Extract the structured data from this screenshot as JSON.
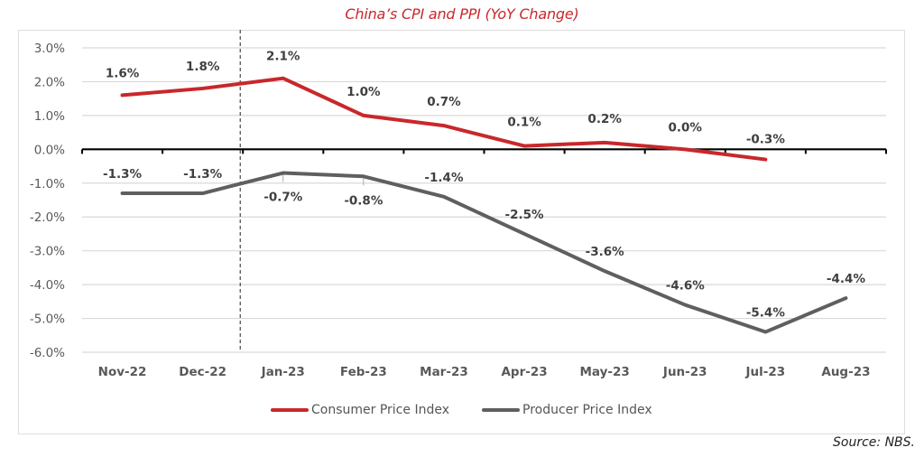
{
  "chart_data": {
    "type": "line",
    "title": "China’s CPI and PPI (YoY Change)",
    "xlabel": "",
    "ylabel": "",
    "categories": [
      "Nov-22",
      "Dec-22",
      "Jan-23",
      "Feb-23",
      "Mar-23",
      "Apr-23",
      "May-23",
      "Jun-23",
      "Jul-23",
      "Aug-23"
    ],
    "ylim": [
      -6.0,
      3.0
    ],
    "yticks": [
      3.0,
      2.0,
      1.0,
      0.0,
      -1.0,
      -2.0,
      -3.0,
      -4.0,
      -5.0,
      -6.0
    ],
    "ytick_labels": [
      "3.0%",
      "2.0%",
      "1.0%",
      "0.0%",
      "-1.0%",
      "-2.0%",
      "-3.0%",
      "-4.0%",
      "-5.0%",
      "-6.0%"
    ],
    "grid": true,
    "legend_position": "bottom",
    "series": [
      {
        "name": "Consumer Price Index",
        "color": "#c8282b",
        "values": [
          1.6,
          1.8,
          2.1,
          1.0,
          0.7,
          0.1,
          0.2,
          0.0,
          -0.3,
          null
        ],
        "labels": [
          "1.6%",
          "1.8%",
          "2.1%",
          "1.0%",
          "0.7%",
          "0.1%",
          "0.2%",
          "0.0%",
          "-0.3%",
          null
        ]
      },
      {
        "name": "Producer Price Index",
        "color": "#5f5f5f",
        "values": [
          -1.3,
          -1.3,
          -0.7,
          -0.8,
          -1.4,
          -2.5,
          -3.6,
          -4.6,
          -5.4,
          -4.4
        ],
        "labels": [
          "-1.3%",
          "-1.3%",
          "-0.7%",
          "-0.8%",
          "-1.4%",
          "-2.5%",
          "-3.6%",
          "-4.6%",
          "-5.4%",
          "-4.4%"
        ]
      }
    ],
    "annotations": [
      {
        "type": "vertical-dashed-line",
        "between": [
          "Dec-22",
          "Jan-23"
        ]
      }
    ]
  },
  "source": "Source: NBS."
}
